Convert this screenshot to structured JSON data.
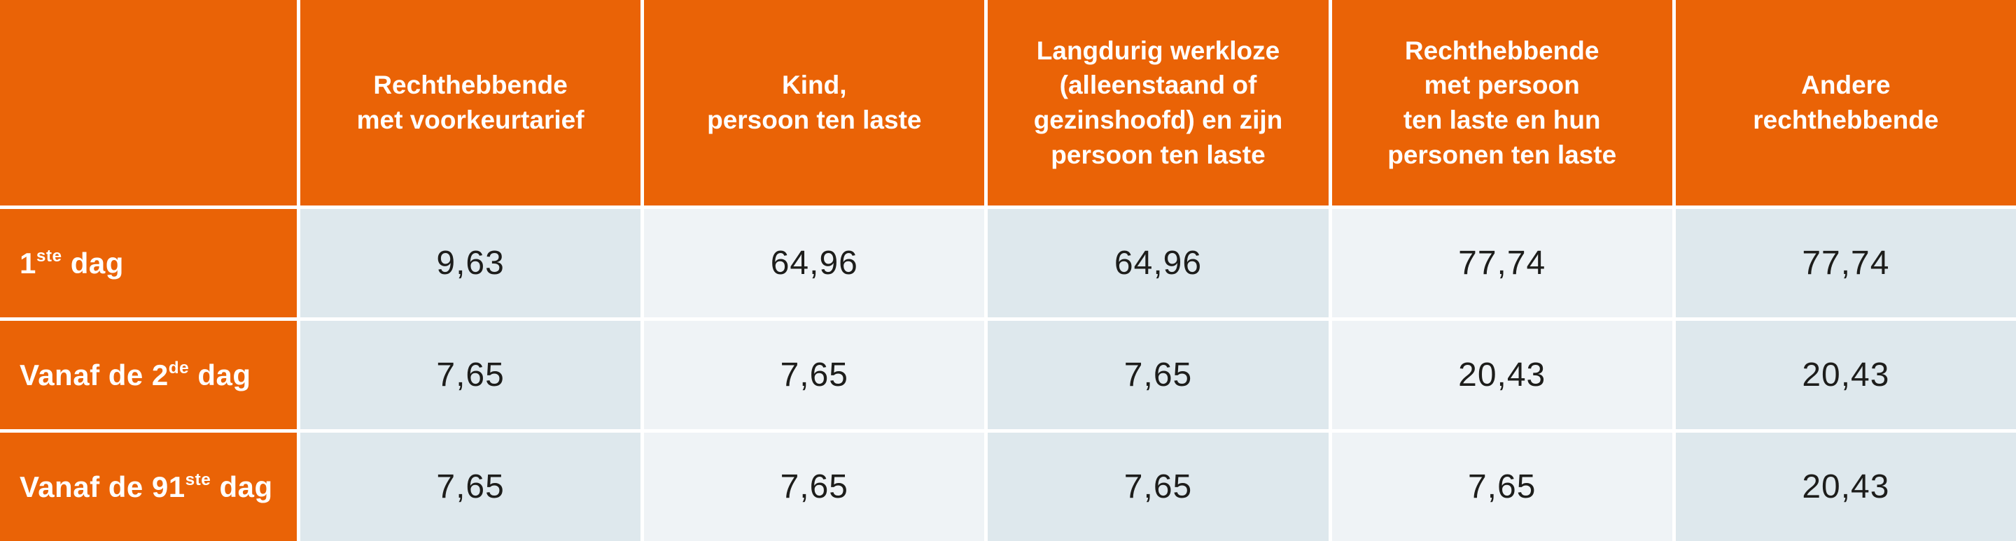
{
  "colors": {
    "orange": "#ea6306",
    "cell-dark": "#dee8ed",
    "cell-light": "#eff3f6",
    "text-dark": "#1d1d1b",
    "grid-line": "#ffffff"
  },
  "table": {
    "columns": [
      {
        "label": ""
      },
      {
        "label": "Rechthebbende\nmet voorkeurtarief"
      },
      {
        "label": "Kind,\npersoon ten laste"
      },
      {
        "label": "Langdurig werkloze\n(alleenstaand of\ngezinshoofd) en zijn\npersoon ten laste"
      },
      {
        "label": "Rechthebbende\nmet persoon\nten laste en hun\npersonen ten laste"
      },
      {
        "label": "Andere\nrechthebbende"
      }
    ],
    "rows": [
      {
        "label": {
          "pre": "1",
          "sup": "ste",
          "post": " dag"
        },
        "values": [
          "9,63",
          "64,96",
          "64,96",
          "77,74",
          "77,74"
        ]
      },
      {
        "label": {
          "pre": "Vanaf de 2",
          "sup": "de",
          "post": " dag"
        },
        "values": [
          "7,65",
          "7,65",
          "7,65",
          "20,43",
          "20,43"
        ]
      },
      {
        "label": {
          "pre": "Vanaf de 91",
          "sup": "ste",
          "post": " dag"
        },
        "values": [
          "7,65",
          "7,65",
          "7,65",
          "7,65",
          "20,43"
        ]
      }
    ]
  },
  "chart_data": {
    "type": "table",
    "title": "",
    "columns": [
      "",
      "Rechthebbende met voorkeurtarief",
      "Kind, persoon ten laste",
      "Langdurig werkloze (alleenstaand of gezinshoofd) en zijn persoon ten laste",
      "Rechthebbende met persoon ten laste en hun personen ten laste",
      "Andere rechthebbende"
    ],
    "rows": [
      [
        "1ste dag",
        9.63,
        64.96,
        64.96,
        77.74,
        77.74
      ],
      [
        "Vanaf de 2de dag",
        7.65,
        7.65,
        7.65,
        20.43,
        20.43
      ],
      [
        "Vanaf de 91ste dag",
        7.65,
        7.65,
        7.65,
        7.65,
        20.43
      ]
    ],
    "layout_hints": {
      "decimal_separator": ",",
      "header_style": "orange background, white text",
      "body_style": "alternating light blue-gray column shading"
    }
  }
}
